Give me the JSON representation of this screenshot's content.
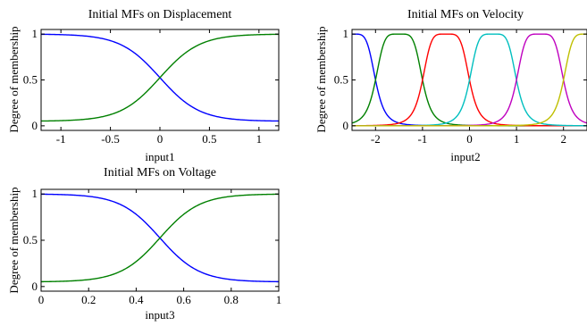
{
  "chart_data": [
    {
      "type": "line",
      "title": "Initial MFs on Displacement",
      "xlabel": "input1",
      "ylabel": "Degree of membership",
      "xlim": [
        -1.2,
        1.2
      ],
      "ylim": [
        -0.05,
        1.05
      ],
      "xticks": [
        -1,
        -0.5,
        0,
        0.5,
        1
      ],
      "xtick_labels": [
        "-1",
        "-0.5",
        "0",
        "0.5",
        "1"
      ],
      "yticks": [
        0,
        0.5,
        1
      ],
      "ytick_labels": [
        "0",
        "0.5",
        "1"
      ],
      "grid": false,
      "series": [
        {
          "kind": "zmf",
          "color": "#0000ff",
          "a": -1.2,
          "b": 1.2,
          "x": [
            -1.2,
            -0.9,
            -0.6,
            -0.3,
            0,
            0.3,
            0.6,
            0.9,
            1.2
          ],
          "values": [
            1.0,
            0.98,
            0.92,
            0.76,
            0.5,
            0.24,
            0.14,
            0.08,
            0.05
          ]
        },
        {
          "kind": "smf",
          "color": "#008000",
          "a": -1.2,
          "b": 1.2,
          "x": [
            -1.2,
            -0.9,
            -0.6,
            -0.3,
            0,
            0.3,
            0.6,
            0.9,
            1.2
          ],
          "values": [
            0.05,
            0.08,
            0.14,
            0.24,
            0.5,
            0.76,
            0.92,
            0.98,
            1.0
          ]
        }
      ]
    },
    {
      "type": "line",
      "title": "Initial MFs on Velocity",
      "xlabel": "input2",
      "ylabel": "Degree of membership",
      "xlim": [
        -2.5,
        2.5
      ],
      "ylim": [
        -0.05,
        1.05
      ],
      "xticks": [
        -2,
        -1,
        0,
        1,
        2
      ],
      "xtick_labels": [
        "-2",
        "-1",
        "0",
        "1",
        "2"
      ],
      "yticks": [
        0,
        0.5,
        1
      ],
      "ytick_labels": [
        "0",
        "0.5",
        "1"
      ],
      "grid": false,
      "series": [
        {
          "kind": "zmf",
          "color": "#0000ff",
          "center": -2.5,
          "width": 0.5
        },
        {
          "kind": "bell",
          "color": "#008000",
          "center": -1.5,
          "width": 0.5
        },
        {
          "kind": "bell",
          "color": "#ff0000",
          "center": -0.5,
          "width": 0.5
        },
        {
          "kind": "bell",
          "color": "#00bfbf",
          "center": 0.5,
          "width": 0.5
        },
        {
          "kind": "bell",
          "color": "#bf00bf",
          "center": 1.5,
          "width": 0.5
        },
        {
          "kind": "smf",
          "color": "#bfbf00",
          "center": 2.5,
          "width": 0.5
        }
      ]
    },
    {
      "type": "line",
      "title": "Initial MFs on Voltage",
      "xlabel": "input3",
      "ylabel": "Degree of membership",
      "xlim": [
        0,
        1
      ],
      "ylim": [
        -0.05,
        1.05
      ],
      "xticks": [
        0,
        0.2,
        0.4,
        0.6,
        0.8,
        1
      ],
      "xtick_labels": [
        "0",
        "0.2",
        "0.4",
        "0.6",
        "0.8",
        "1"
      ],
      "yticks": [
        0,
        0.5,
        1
      ],
      "ytick_labels": [
        "0",
        "0.5",
        "1"
      ],
      "grid": false,
      "series": [
        {
          "kind": "zmf",
          "color": "#0000ff",
          "a": 0,
          "b": 1,
          "x": [
            0,
            0.125,
            0.25,
            0.375,
            0.5,
            0.625,
            0.75,
            0.875,
            1
          ],
          "values": [
            1.0,
            0.98,
            0.92,
            0.76,
            0.5,
            0.24,
            0.14,
            0.08,
            0.05
          ]
        },
        {
          "kind": "smf",
          "color": "#008000",
          "a": 0,
          "b": 1,
          "x": [
            0,
            0.125,
            0.25,
            0.375,
            0.5,
            0.625,
            0.75,
            0.875,
            1
          ],
          "values": [
            0.05,
            0.08,
            0.14,
            0.24,
            0.5,
            0.76,
            0.92,
            0.98,
            1.0
          ]
        }
      ]
    }
  ]
}
